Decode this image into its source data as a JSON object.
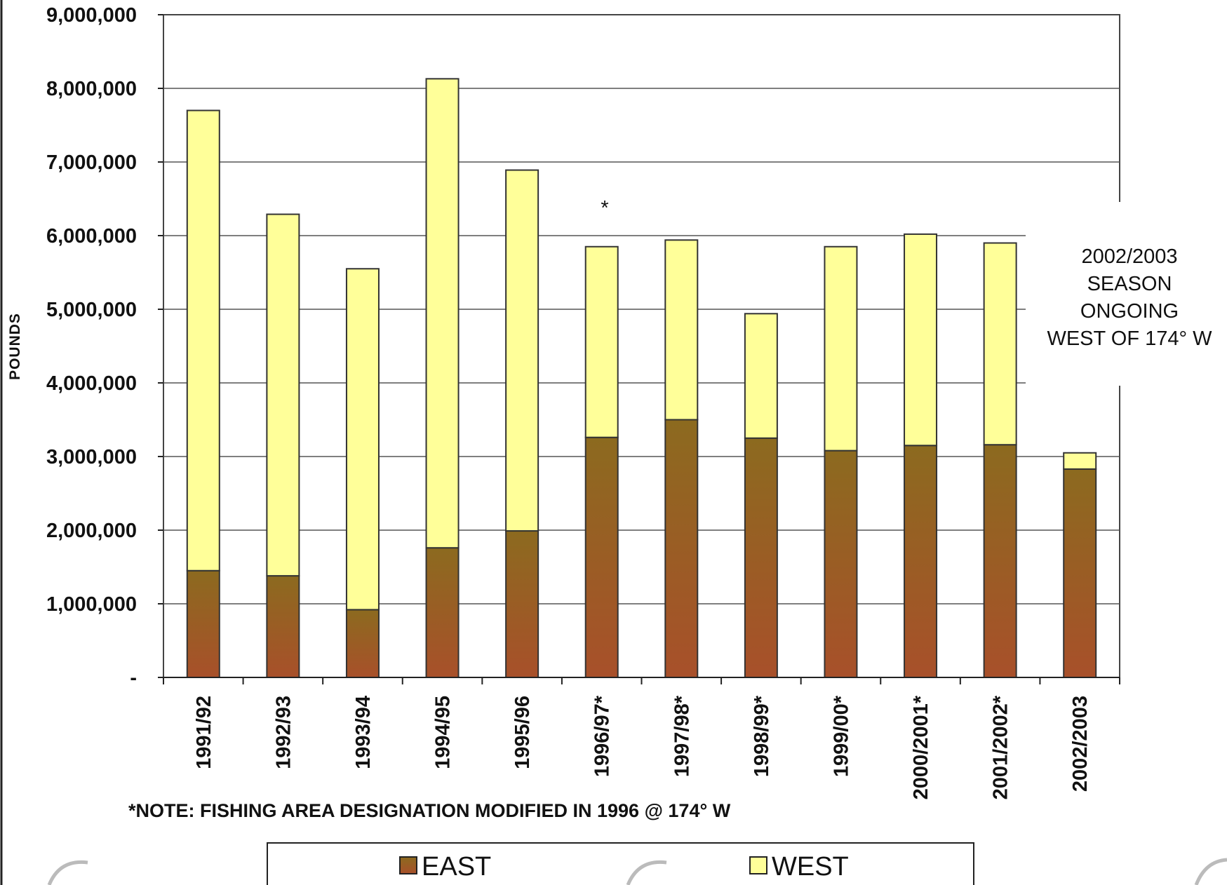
{
  "chart_data": {
    "type": "bar",
    "stacked": true,
    "categories": [
      "1991/92",
      "1992/93",
      "1993/94",
      "1994/95",
      "1995/96",
      "1996/97*",
      "1997/98*",
      "1998/99*",
      "1999/00*",
      "2000/2001*",
      "2001/2002*",
      "2002/2003"
    ],
    "series": [
      {
        "name": "EAST",
        "color": "#8a5a1e",
        "values": [
          1450000,
          1380000,
          920000,
          1760000,
          1990000,
          3260000,
          3500000,
          3250000,
          3080000,
          3150000,
          3160000,
          2830000
        ]
      },
      {
        "name": "WEST",
        "color": "#ffff99",
        "values": [
          6250000,
          4910000,
          4630000,
          6370000,
          4900000,
          2590000,
          2440000,
          1690000,
          2770000,
          2870000,
          2740000,
          220000
        ]
      }
    ],
    "ylabel": "POUNDS",
    "ylim": [
      0,
      9000000
    ],
    "yticks": [
      {
        "value": 0,
        "label": "-"
      },
      {
        "value": 1000000,
        "label": "1,000,000"
      },
      {
        "value": 2000000,
        "label": "2,000,000"
      },
      {
        "value": 3000000,
        "label": "3,000,000"
      },
      {
        "value": 4000000,
        "label": "4,000,000"
      },
      {
        "value": 5000000,
        "label": "5,000,000"
      },
      {
        "value": 6000000,
        "label": "6,000,000"
      },
      {
        "value": 7000000,
        "label": "7,000,000"
      },
      {
        "value": 8000000,
        "label": "8,000,000"
      },
      {
        "value": 9000000,
        "label": "9,000,000"
      }
    ],
    "grid": true,
    "legend_position": "bottom",
    "note": "*NOTE:  FISHING AREA DESIGNATION MODIFIED IN 1996 @ 174° W",
    "star_marker": "*",
    "season_annotation": [
      "2002/2003",
      "SEASON",
      "ONGOING",
      "WEST OF 174° W"
    ]
  }
}
